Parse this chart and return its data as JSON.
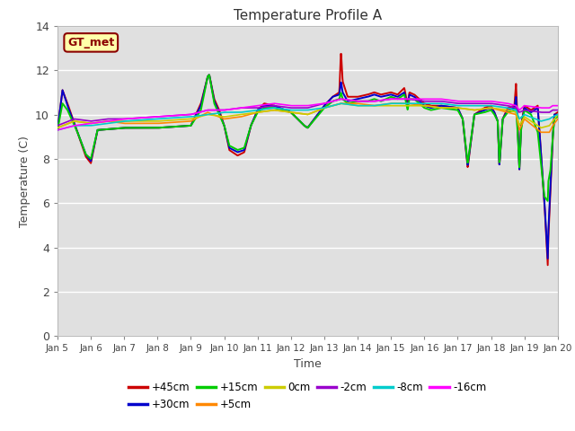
{
  "title": "Temperature Profile A",
  "xlabel": "Time",
  "ylabel": "Temperature (C)",
  "ylim": [
    0,
    14
  ],
  "yticks": [
    0,
    2,
    4,
    6,
    8,
    10,
    12,
    14
  ],
  "xtick_labels": [
    "Jan 5",
    "Jan 6",
    "Jan 7",
    "Jan 8",
    "Jan 9",
    "Jan 10",
    "Jan 11",
    "Jan 12",
    "Jan 13",
    "Jan 14",
    "Jan 15",
    "Jan 16",
    "Jan 17",
    "Jan 18",
    "Jan 19",
    "Jan 20"
  ],
  "bg_color": "#e0e0e0",
  "grid_color": "#ffffff",
  "series_colors": {
    "+45cm": "#cc0000",
    "+30cm": "#0000cc",
    "+15cm": "#00cc00",
    "+5cm": "#ff8800",
    "0cm": "#cccc00",
    "-2cm": "#9900cc",
    "-8cm": "#00cccc",
    "-16cm": "#ff00ff"
  },
  "legend_label": "GT_met",
  "gt_box_facecolor": "#ffffaa",
  "gt_box_edgecolor": "#8B0000",
  "gt_text_color": "#8B0000"
}
